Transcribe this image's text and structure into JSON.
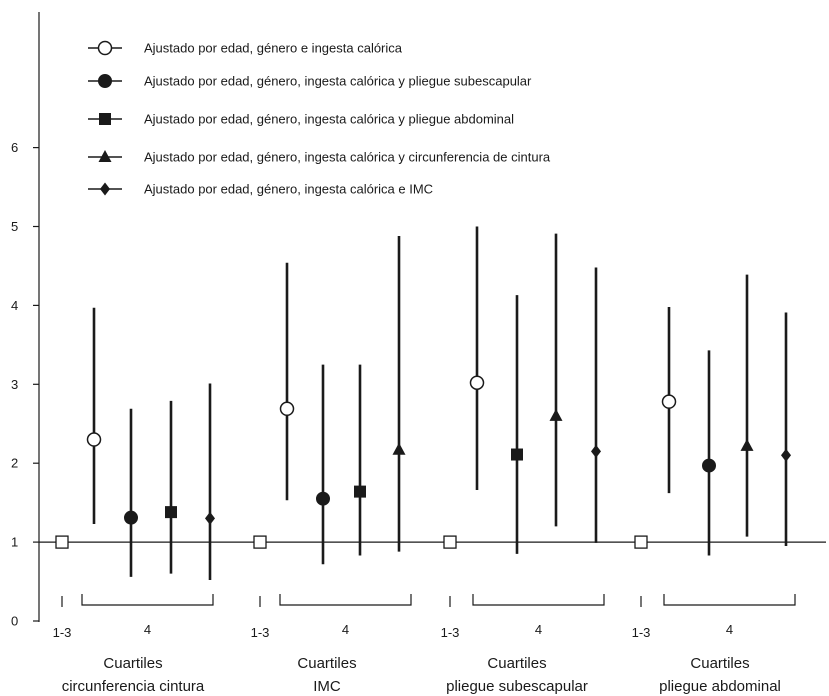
{
  "chart_data": {
    "type": "scatter",
    "subtype": "point-with-error-bars",
    "title": "",
    "xlabel": "",
    "ylabel": "",
    "ylim": [
      0,
      6.5
    ],
    "yticks": [
      0,
      1,
      2,
      3,
      4,
      5,
      6
    ],
    "reference_line": 1,
    "grid": false,
    "legend_position": "top-left",
    "groups": [
      {
        "title": [
          "Cuartiles",
          "circunferencia cintura"
        ],
        "ref_label": "1-3",
        "q4_label": "4",
        "reference_value": 1,
        "points": [
          {
            "series": 0,
            "value": 2.3,
            "low": 1.23,
            "high": 3.97
          },
          {
            "series": 1,
            "value": 1.31,
            "low": 0.56,
            "high": 2.69
          },
          {
            "series": 2,
            "value": 1.38,
            "low": 0.6,
            "high": 2.79
          },
          {
            "series": 4,
            "value": 1.3,
            "low": 0.52,
            "high": 3.01
          }
        ]
      },
      {
        "title": [
          "Cuartiles",
          "IMC"
        ],
        "ref_label": "1-3",
        "q4_label": "4",
        "reference_value": 1,
        "points": [
          {
            "series": 0,
            "value": 2.69,
            "low": 1.53,
            "high": 4.54
          },
          {
            "series": 1,
            "value": 1.55,
            "low": 0.72,
            "high": 3.25
          },
          {
            "series": 2,
            "value": 1.64,
            "low": 0.83,
            "high": 3.25
          },
          {
            "series": 3,
            "value": 2.17,
            "low": 0.88,
            "high": 4.88
          }
        ]
      },
      {
        "title": [
          "Cuartiles",
          "pliegue subescapular"
        ],
        "ref_label": "1-3",
        "q4_label": "4",
        "reference_value": 1,
        "points": [
          {
            "series": 0,
            "value": 3.02,
            "low": 1.66,
            "high": 5.0
          },
          {
            "series": 2,
            "value": 2.11,
            "low": 0.85,
            "high": 4.13
          },
          {
            "series": 3,
            "value": 2.6,
            "low": 1.2,
            "high": 4.91
          },
          {
            "series": 4,
            "value": 2.15,
            "low": 0.99,
            "high": 4.48
          }
        ]
      },
      {
        "title": [
          "Cuartiles",
          "pliegue abdominal"
        ],
        "ref_label": "1-3",
        "q4_label": "4",
        "reference_value": 1,
        "points": [
          {
            "series": 0,
            "value": 2.78,
            "low": 1.62,
            "high": 3.98
          },
          {
            "series": 1,
            "value": 1.97,
            "low": 0.83,
            "high": 3.43
          },
          {
            "series": 3,
            "value": 2.22,
            "low": 1.07,
            "high": 4.39
          },
          {
            "series": 4,
            "value": 2.1,
            "low": 0.95,
            "high": 3.91
          }
        ]
      }
    ],
    "series": [
      {
        "name": "Ajustado por edad, género e ingesta calórica",
        "marker": "circle-open"
      },
      {
        "name": "Ajustado por edad, género, ingesta calórica y pliegue subescapular",
        "marker": "circle-filled"
      },
      {
        "name": "Ajustado por edad, género, ingesta calórica y pliegue abdominal",
        "marker": "square-filled"
      },
      {
        "name": "Ajustado por edad, género, ingesta calórica y circunferencia de cintura",
        "marker": "triangle-filled"
      },
      {
        "name": "Ajustado por edad, género, ingesta calórica e IMC",
        "marker": "diamond-filled"
      }
    ],
    "colors": {
      "ink": "#1a1a1a",
      "background": "#ffffff"
    }
  }
}
